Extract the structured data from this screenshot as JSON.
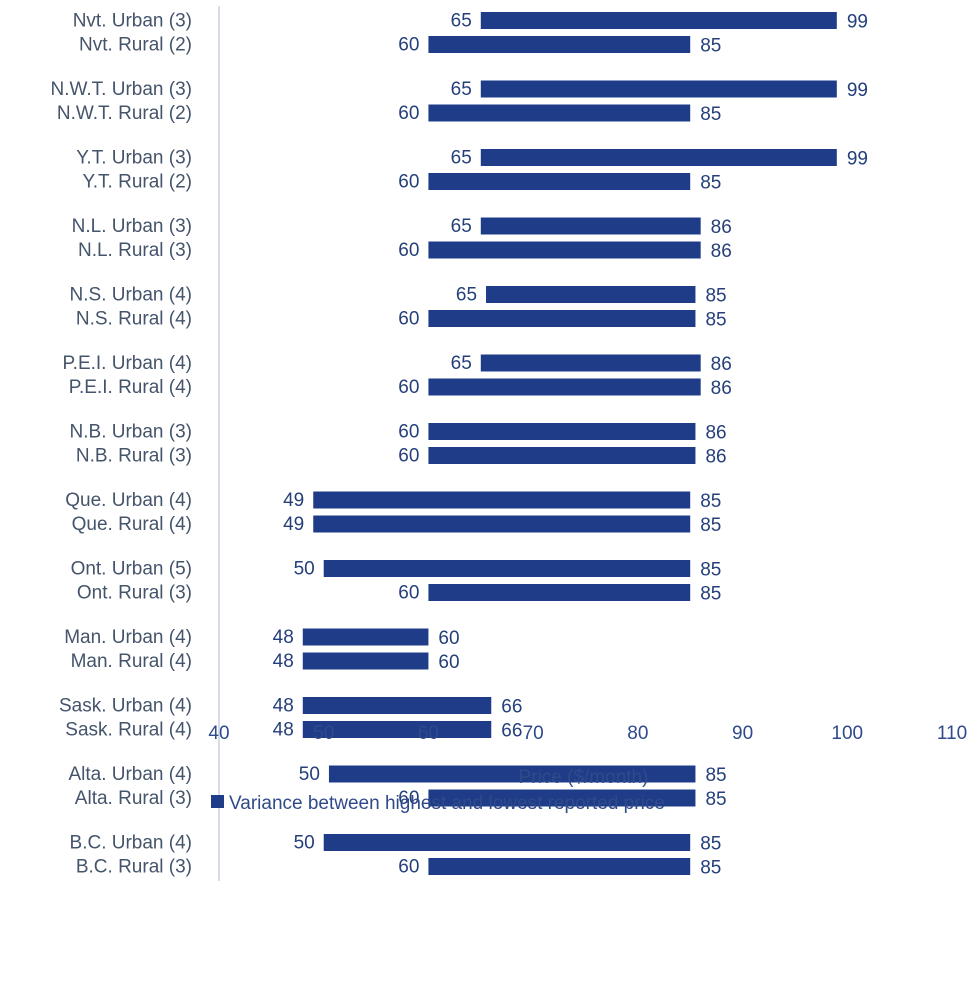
{
  "chart_data": {
    "type": "bar",
    "orientation": "horizontal",
    "subtype": "floating-range",
    "xlabel": "Price ($/month)",
    "xlim": [
      40,
      110
    ],
    "xticks": [
      40,
      50,
      60,
      70,
      80,
      90,
      100,
      110
    ],
    "grid": false,
    "legend": {
      "position": "bottom",
      "entries": [
        "Variance between highest and lowest reported price"
      ]
    },
    "colors": {
      "bar": "#1F3C88",
      "label": "#243F7A",
      "category": "#44546A",
      "axis": "#2F4A8A",
      "axis_line": "#D9DCE6"
    },
    "series": [
      {
        "name": "Variance between highest and lowest reported price",
        "categories": [
          "Nvt. Urban (3)",
          "Nvt. Rural (2)",
          "N.W.T. Urban (3)",
          "N.W.T. Rural (2)",
          "Y.T. Urban (3)",
          "Y.T. Rural (2)",
          "N.L. Urban (3)",
          "N.L. Rural (3)",
          "N.S. Urban (4)",
          "N.S. Rural (4)",
          "P.E.I. Urban (4)",
          "P.E.I. Rural (4)",
          "N.B. Urban (3)",
          "N.B. Rural (3)",
          "Que. Urban (4)",
          "Que. Rural (4)",
          "Ont. Urban (5)",
          "Ont. Rural (3)",
          "Man. Urban (4)",
          "Man. Rural (4)",
          "Sask. Urban (4)",
          "Sask. Rural (4)",
          "Alta. Urban (4)",
          "Alta. Rural (3)",
          "B.C. Urban (4)",
          "B.C. Rural (3)"
        ],
        "low": [
          65,
          60,
          65,
          60,
          65,
          60,
          65,
          60,
          65,
          60,
          65,
          60,
          60,
          60,
          49,
          49,
          50,
          60,
          48,
          48,
          48,
          48,
          50,
          60,
          50,
          60
        ],
        "high": [
          99,
          85,
          99,
          85,
          99,
          85,
          86,
          86,
          85,
          85,
          86,
          86,
          86,
          86,
          85,
          85,
          85,
          85,
          60,
          60,
          66,
          66,
          85,
          85,
          85,
          85
        ],
        "low_precise": [
          65,
          60,
          65,
          60,
          65,
          60,
          65,
          60,
          65.5,
          60,
          65,
          60,
          60,
          60,
          49,
          49,
          50,
          60,
          48,
          48,
          48,
          48,
          50.5,
          60,
          50,
          60
        ],
        "high_precise": [
          99,
          85,
          99,
          85,
          99,
          85,
          86,
          86,
          85.5,
          85.5,
          86,
          86,
          85.5,
          85.5,
          85,
          85,
          85,
          85,
          60,
          60,
          66,
          66,
          85.5,
          85.5,
          85,
          85
        ]
      }
    ]
  }
}
